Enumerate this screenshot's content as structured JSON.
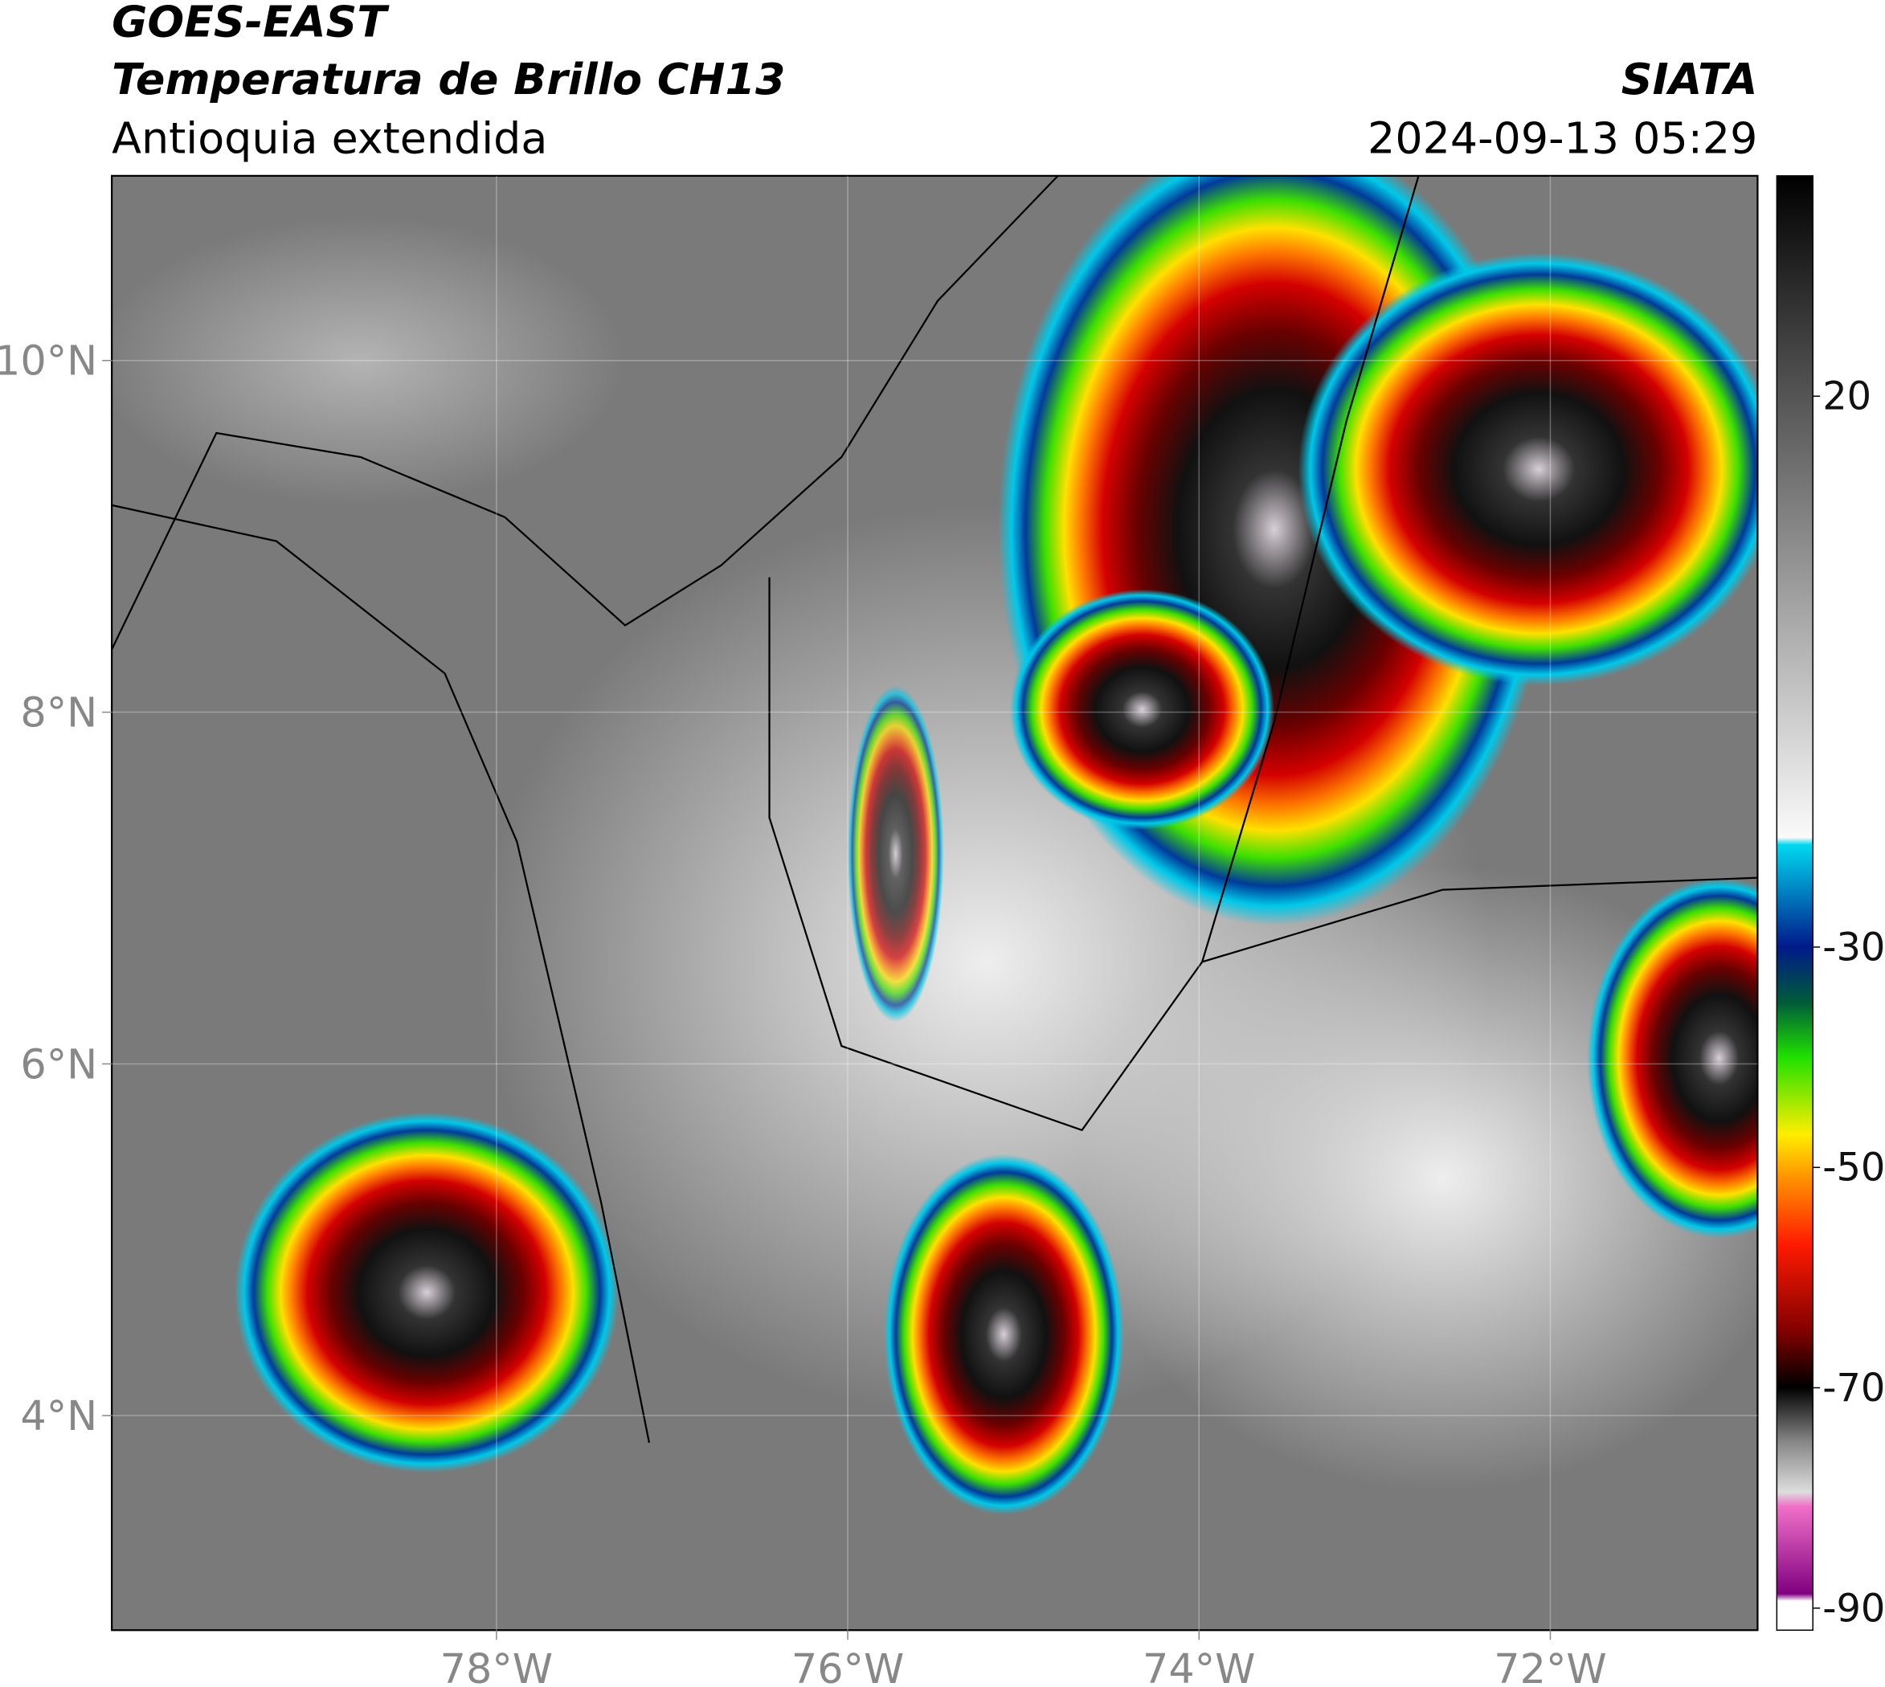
{
  "header": {
    "title": "GOES-EAST",
    "subtitle": "Temperatura de Brillo CH13",
    "region": "Antioquia extendida",
    "source": "SIATA",
    "datetime": "2024-09-13 05:29"
  },
  "map": {
    "xlim": [
      -80.19,
      -70.82
    ],
    "ylim": [
      2.78,
      11.05
    ],
    "xticks": [
      {
        "value": -78,
        "label": "78°W"
      },
      {
        "value": -76,
        "label": "76°W"
      },
      {
        "value": -74,
        "label": "74°W"
      },
      {
        "value": -72,
        "label": "72°W"
      }
    ],
    "yticks": [
      {
        "value": 10,
        "label": "10°N"
      },
      {
        "value": 8,
        "label": "8°N"
      },
      {
        "value": 6,
        "label": "6°N"
      },
      {
        "value": 4,
        "label": "4°N"
      }
    ]
  },
  "colorbar": {
    "lim": [
      -92,
      40
    ],
    "ticks": [
      20,
      -30,
      -50,
      -70,
      -90
    ]
  }
}
